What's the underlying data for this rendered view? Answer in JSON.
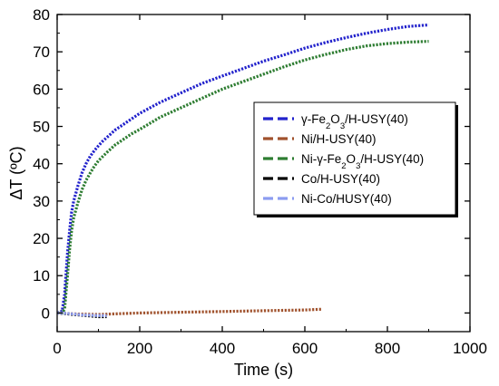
{
  "chart_data": {
    "type": "line",
    "xlabel": "Time (s)",
    "ylabel": "ΔT (ºC)",
    "xlim": [
      0,
      1000
    ],
    "ylim": [
      -5,
      80
    ],
    "x_ticks": [
      0,
      200,
      400,
      600,
      800,
      1000
    ],
    "y_ticks": [
      0,
      10,
      20,
      30,
      40,
      50,
      60,
      70,
      80
    ],
    "legend_position": "right",
    "series": [
      {
        "name": "γ-Fe2O3/H-USY(40)",
        "legend_label": {
          "pre": "γ-Fe",
          "sub1": "2",
          "mid": "O",
          "sub2": "3",
          "post": "/H-USY(40)"
        },
        "color": "#2222cc",
        "x": [
          0,
          12,
          18,
          25,
          30,
          35,
          40,
          50,
          60,
          70,
          80,
          90,
          100,
          110,
          120,
          140,
          160,
          180,
          200,
          250,
          300,
          350,
          400,
          450,
          500,
          550,
          600,
          650,
          700,
          750,
          800,
          850,
          900
        ],
        "y": [
          0,
          0.5,
          5,
          16,
          22,
          27,
          30,
          34,
          37.5,
          40,
          42,
          43.5,
          44.8,
          46,
          47,
          49,
          50.5,
          52,
          53.5,
          56.5,
          59,
          61.5,
          63.5,
          65.5,
          67.5,
          69.2,
          71,
          72.5,
          73.8,
          75,
          76,
          76.8,
          77.2
        ]
      },
      {
        "name": "Ni/H-USY(40)",
        "legend_label": {
          "pre": "Ni/H-USY(40)"
        },
        "color": "#a0522d",
        "x": [
          0,
          50,
          100,
          150,
          200,
          300,
          400,
          500,
          600,
          640
        ],
        "y": [
          0,
          -0.3,
          -0.4,
          -0.2,
          0,
          0.2,
          0.4,
          0.6,
          0.8,
          1.0
        ]
      },
      {
        "name": "Ni-γ-Fe2O3/H-USY(40)",
        "legend_label": {
          "pre": "Ni-γ-Fe",
          "sub1": "2",
          "mid": "O",
          "sub2": "3",
          "post": "/H-USY(40)"
        },
        "color": "#2e7d32",
        "x": [
          0,
          12,
          18,
          25,
          30,
          35,
          40,
          50,
          60,
          70,
          80,
          90,
          100,
          120,
          140,
          160,
          180,
          200,
          250,
          300,
          350,
          400,
          450,
          500,
          550,
          600,
          650,
          700,
          750,
          800,
          850,
          900
        ],
        "y": [
          0,
          0,
          1,
          10,
          17,
          22,
          25.5,
          29.5,
          33,
          35.5,
          37.5,
          39.3,
          40.8,
          43,
          45,
          46.5,
          48,
          49.2,
          52.5,
          55,
          57.5,
          60,
          62,
          64,
          66,
          67.8,
          69.3,
          70.6,
          71.6,
          72.2,
          72.6,
          72.8
        ]
      },
      {
        "name": "Co/H-USY(40)",
        "legend_label": {
          "pre": "Co/H-USY(40)"
        },
        "color": "#000000",
        "x": [
          0,
          20,
          40,
          60,
          80,
          100,
          120
        ],
        "y": [
          0,
          -0.2,
          -0.4,
          -0.6,
          -0.8,
          -1.0,
          -1.0
        ]
      },
      {
        "name": "Ni-Co/HUSY(40)",
        "legend_label": {
          "pre": "Ni-Co/HUSY(40)"
        },
        "color": "#8c9cf0",
        "x": [
          0,
          20,
          40,
          60,
          80,
          100,
          120
        ],
        "y": [
          0,
          -0.1,
          -0.3,
          -0.5,
          -0.6,
          -0.7,
          -0.7
        ]
      }
    ]
  }
}
